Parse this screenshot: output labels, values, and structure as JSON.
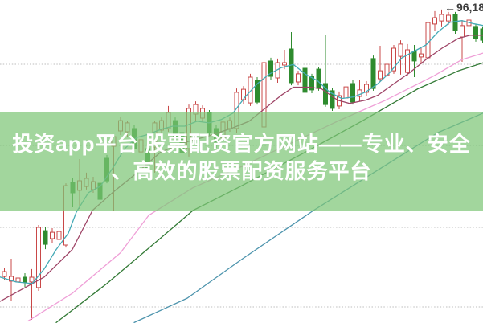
{
  "overlay": {
    "title_line1": "投资app平台 股票配资官方网站——专业、安全",
    "title_line2": "、高效的股票配资服务平台",
    "band_color": "rgba(126,198,119,0.72)",
    "text_color": "#ffffff"
  },
  "annotation": {
    "arrow": "←",
    "price": "96,18",
    "color": "#3c3c3c"
  },
  "chart_data": {
    "type": "candlestick",
    "title": "",
    "x_axis": {
      "unit": "px",
      "tick_labels_visible": false
    },
    "y_axis": {
      "tick_labels_visible": false,
      "only_visible_label": "96,18"
    },
    "ylim": [
      76.87,
      96.77
    ],
    "grid": "horizontal-dotted",
    "gridline_prices": [
      92.81,
      87.81,
      82.76,
      77.86
    ],
    "gridline_color": "#bcbcbc",
    "up_color": "#c94848",
    "down_color": "#2e8b2e",
    "annotation_high": {
      "price_text": "96,18",
      "value": 96.18
    },
    "x_start": 5.5,
    "x_step": 8.5,
    "candle_width": 5,
    "candles_ohlc": [
      [
        79.74,
        80.24,
        79.54,
        80.04
      ],
      [
        79.45,
        80.83,
        78.21,
        79.74
      ],
      [
        79.4,
        79.84,
        79.15,
        79.64
      ],
      [
        79.69,
        79.94,
        79.1,
        79.35
      ],
      [
        79.4,
        80.19,
        77.07,
        79.69
      ],
      [
        79.05,
        82.91,
        78.85,
        82.76
      ],
      [
        82.56,
        82.76,
        81.42,
        81.72
      ],
      [
        82.07,
        82.71,
        81.82,
        82.46
      ],
      [
        82.02,
        82.66,
        81.82,
        82.51
      ],
      [
        81.67,
        85.48,
        81.52,
        85.33
      ],
      [
        85.53,
        85.78,
        84.0,
        84.89
      ],
      [
        85.04,
        86.97,
        83.9,
        85.63
      ],
      [
        85.28,
        86.13,
        85.09,
        85.78
      ],
      [
        85.09,
        85.88,
        84.89,
        85.58
      ],
      [
        85.48,
        85.68,
        84.29,
        84.49
      ],
      [
        87.02,
        87.22,
        85.48,
        85.63
      ],
      [
        87.76,
        88.45,
        83.75,
        88.35
      ],
      [
        88.7,
        89.59,
        88.45,
        89.34
      ],
      [
        88.65,
        89.34,
        88.35,
        89.2
      ],
      [
        88.85,
        89.05,
        87.46,
        87.61
      ],
      [
        87.41,
        88.35,
        87.27,
        88.16
      ],
      [
        87.61,
        87.81,
        86.22,
        86.37
      ],
      [
        87.71,
        89.34,
        86.13,
        89.2
      ],
      [
        88.75,
        89.54,
        88.55,
        89.34
      ],
      [
        88.85,
        90.24,
        88.65,
        89.84
      ],
      [
        89.34,
        89.54,
        88.16,
        88.35
      ],
      [
        88.6,
        88.8,
        87.17,
        87.36
      ],
      [
        87.61,
        90.33,
        87.12,
        90.09
      ],
      [
        89.74,
        90.53,
        89.34,
        90.33
      ],
      [
        89.49,
        90.28,
        89.25,
        90.09
      ],
      [
        89.84,
        89.99,
        88.4,
        88.6
      ],
      [
        88.85,
        89.05,
        87.66,
        87.86
      ],
      [
        88.26,
        89.44,
        87.56,
        89.25
      ],
      [
        88.85,
        89.54,
        88.65,
        89.34
      ],
      [
        88.85,
        91.32,
        88.6,
        91.08
      ],
      [
        90.63,
        91.47,
        90.38,
        91.27
      ],
      [
        90.43,
        92.22,
        90.24,
        92.02
      ],
      [
        91.82,
        92.02,
        90.33,
        90.48
      ],
      [
        88.95,
        93.11,
        88.8,
        92.91
      ],
      [
        93.01,
        93.21,
        91.87,
        92.07
      ],
      [
        91.97,
        93.16,
        91.67,
        92.91
      ],
      [
        92.76,
        93.7,
        92.51,
        92.91
      ],
      [
        93.75,
        94.79,
        91.52,
        91.67
      ],
      [
        91.72,
        92.41,
        91.52,
        92.22
      ],
      [
        92.56,
        92.71,
        90.93,
        91.08
      ],
      [
        92.07,
        92.22,
        91.03,
        91.23
      ],
      [
        92.51,
        92.66,
        91.18,
        91.32
      ],
      [
        91.62,
        94.64,
        90.19,
        90.33
      ],
      [
        91.18,
        91.37,
        89.94,
        90.09
      ],
      [
        90.24,
        91.13,
        90.04,
        90.88
      ],
      [
        90.73,
        92.07,
        89.99,
        91.42
      ],
      [
        91.62,
        91.82,
        90.33,
        90.48
      ],
      [
        90.83,
        91.82,
        90.53,
        91.23
      ],
      [
        91.08,
        91.77,
        90.88,
        91.57
      ],
      [
        93.16,
        93.35,
        91.18,
        91.32
      ],
      [
        91.92,
        93.95,
        91.72,
        92.41
      ],
      [
        92.12,
        93.01,
        91.92,
        92.81
      ],
      [
        92.41,
        94.0,
        92.22,
        93.8
      ],
      [
        93.3,
        94.29,
        92.17,
        94.05
      ],
      [
        92.31,
        94.05,
        92.07,
        93.7
      ],
      [
        93.6,
        94.0,
        92.02,
        93.01
      ],
      [
        93.26,
        93.8,
        92.81,
        93.45
      ],
      [
        93.21,
        95.88,
        92.81,
        95.38
      ],
      [
        95.29,
        96.08,
        94.89,
        95.68
      ],
      [
        95.48,
        96.18,
        95.14,
        95.88
      ],
      [
        95.48,
        96.03,
        95.24,
        95.83
      ],
      [
        95.88,
        96.03,
        94.69,
        94.89
      ],
      [
        94.49,
        95.53,
        92.96,
        95.19
      ],
      [
        95.19,
        96.13,
        94.54,
        95.53
      ],
      [
        95.14,
        95.29,
        94.2,
        94.39
      ],
      [
        94.99,
        95.14,
        94.1,
        94.29
      ]
    ],
    "ma_lines": [
      {
        "name": "MA60",
        "color": "#4d94ad",
        "points": [
          [
            167,
            76.9
          ],
          [
            233,
            78.4
          ],
          [
            301,
            80.8
          ],
          [
            390,
            83.8
          ],
          [
            480,
            86.6
          ],
          [
            545,
            88.6
          ],
          [
            601,
            89.8
          ]
        ]
      },
      {
        "name": "MA30",
        "color": "#337a36",
        "points": [
          [
            70,
            76.9
          ],
          [
            133,
            79.3
          ],
          [
            200,
            82.1
          ],
          [
            240,
            83.8
          ],
          [
            296,
            85.2
          ],
          [
            380,
            87.4
          ],
          [
            450,
            89.3
          ],
          [
            520,
            91.3
          ],
          [
            570,
            92.4
          ],
          [
            601,
            92.9
          ]
        ]
      },
      {
        "name": "MA20",
        "color": "#ef9fd7",
        "points": [
          [
            35,
            77.0
          ],
          [
            90,
            78.7
          ],
          [
            150,
            81.2
          ],
          [
            185,
            83.5
          ],
          [
            240,
            85.2
          ],
          [
            300,
            86.5
          ],
          [
            360,
            87.9
          ],
          [
            420,
            89.3
          ],
          [
            480,
            90.6
          ],
          [
            540,
            92.1
          ],
          [
            575,
            93.1
          ],
          [
            601,
            93.5
          ]
        ]
      },
      {
        "name": "MA10",
        "color": "#9e4466",
        "points": [
          [
            0,
            78.2
          ],
          [
            55,
            79.7
          ],
          [
            90,
            81.4
          ],
          [
            115,
            83.8
          ],
          [
            140,
            84.9
          ],
          [
            170,
            86.1
          ],
          [
            200,
            87.4
          ],
          [
            230,
            88.0
          ],
          [
            260,
            88.4
          ],
          [
            290,
            88.9
          ],
          [
            310,
            89.3
          ],
          [
            330,
            90.1
          ],
          [
            350,
            90.9
          ],
          [
            365,
            91.4
          ],
          [
            385,
            91.4
          ],
          [
            400,
            91.3
          ],
          [
            420,
            90.6
          ],
          [
            435,
            90.4
          ],
          [
            455,
            90.6
          ],
          [
            470,
            90.9
          ],
          [
            490,
            91.6
          ],
          [
            510,
            92.3
          ],
          [
            530,
            93.1
          ],
          [
            550,
            93.8
          ],
          [
            570,
            94.4
          ],
          [
            585,
            94.6
          ],
          [
            601,
            94.6
          ]
        ]
      },
      {
        "name": "MA5",
        "color": "#44aab6",
        "points": [
          [
            0,
            79.7
          ],
          [
            20,
            79.4
          ],
          [
            40,
            79.3
          ],
          [
            55,
            80.2
          ],
          [
            70,
            81.4
          ],
          [
            85,
            82.4
          ],
          [
            95,
            83.7
          ],
          [
            110,
            84.9
          ],
          [
            125,
            85.3
          ],
          [
            140,
            86.4
          ],
          [
            155,
            87.6
          ],
          [
            170,
            88.3
          ],
          [
            185,
            88.5
          ],
          [
            200,
            88.8
          ],
          [
            215,
            89.0
          ],
          [
            230,
            89.0
          ],
          [
            245,
            89.3
          ],
          [
            260,
            89.2
          ],
          [
            275,
            89.4
          ],
          [
            290,
            89.8
          ],
          [
            305,
            90.8
          ],
          [
            320,
            91.6
          ],
          [
            335,
            92.2
          ],
          [
            350,
            92.6
          ],
          [
            365,
            92.8
          ],
          [
            380,
            92.2
          ],
          [
            395,
            91.8
          ],
          [
            410,
            91.1
          ],
          [
            425,
            90.7
          ],
          [
            440,
            90.8
          ],
          [
            455,
            91.1
          ],
          [
            470,
            91.6
          ],
          [
            485,
            92.3
          ],
          [
            500,
            93.2
          ],
          [
            515,
            93.6
          ],
          [
            530,
            94.0
          ],
          [
            545,
            94.8
          ],
          [
            560,
            95.4
          ],
          [
            575,
            95.5
          ],
          [
            590,
            95.3
          ],
          [
            601,
            95.2
          ]
        ]
      }
    ]
  }
}
